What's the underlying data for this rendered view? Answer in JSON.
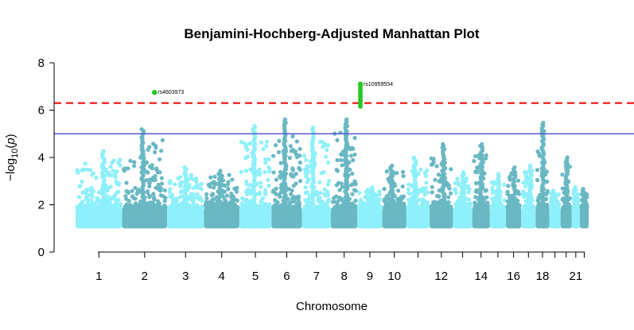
{
  "chart_data": {
    "type": "scatter",
    "title": "Benjamini-Hochberg-Adjusted Manhattan Plot",
    "xlabel": "Chromosome",
    "ylabel": {
      "prefix": "−log",
      "sub": "10",
      "mid": "(",
      "var": "p",
      "suffix": ")"
    },
    "ylim": [
      0,
      8
    ],
    "yticks": [
      0,
      2,
      4,
      6,
      8
    ],
    "x_tick_labels": [
      "1",
      "2",
      "3",
      "4",
      "5",
      "6",
      "7",
      "8",
      "9",
      "10",
      "12",
      "14",
      "16",
      "18",
      "21"
    ],
    "grid": false,
    "colors": {
      "light": "#8EF0FA",
      "dark": "#69B8C3",
      "highlight": "#22C822",
      "genome_wide_line": "#F00000",
      "suggestive_line": "#5A5ACD"
    },
    "thresholds": {
      "genome_wide": 6.3,
      "suggestive": 5.0
    },
    "chromosomes": [
      {
        "chr": "1",
        "peak": 4.3
      },
      {
        "chr": "2",
        "peak": 5.25
      },
      {
        "chr": "3",
        "peak": 3.6
      },
      {
        "chr": "4",
        "peak": 3.5
      },
      {
        "chr": "5",
        "peak": 5.35
      },
      {
        "chr": "6",
        "peak": 5.65
      },
      {
        "chr": "7",
        "peak": 5.3
      },
      {
        "chr": "8",
        "peak": 5.65
      },
      {
        "chr": "9",
        "peak": 2.8
      },
      {
        "chr": "10",
        "peak": 3.7
      },
      {
        "chr": "11",
        "peak": 4.0
      },
      {
        "chr": "12",
        "peak": 4.6
      },
      {
        "chr": "13",
        "peak": 3.4
      },
      {
        "chr": "14",
        "peak": 4.6
      },
      {
        "chr": "15",
        "peak": 3.3
      },
      {
        "chr": "16",
        "peak": 3.6
      },
      {
        "chr": "17",
        "peak": 3.7
      },
      {
        "chr": "18",
        "peak": 5.5
      },
      {
        "chr": "19",
        "peak": 2.6
      },
      {
        "chr": "20",
        "peak": 4.0
      },
      {
        "chr": "21",
        "peak": 2.8
      },
      {
        "chr": "22",
        "peak": 2.7
      }
    ],
    "highlighted_snps": [
      {
        "label": "rs4603973",
        "chr": "2",
        "y": 6.75
      },
      {
        "label": "rs10959554",
        "chr": "9",
        "y": 7.1
      }
    ]
  }
}
